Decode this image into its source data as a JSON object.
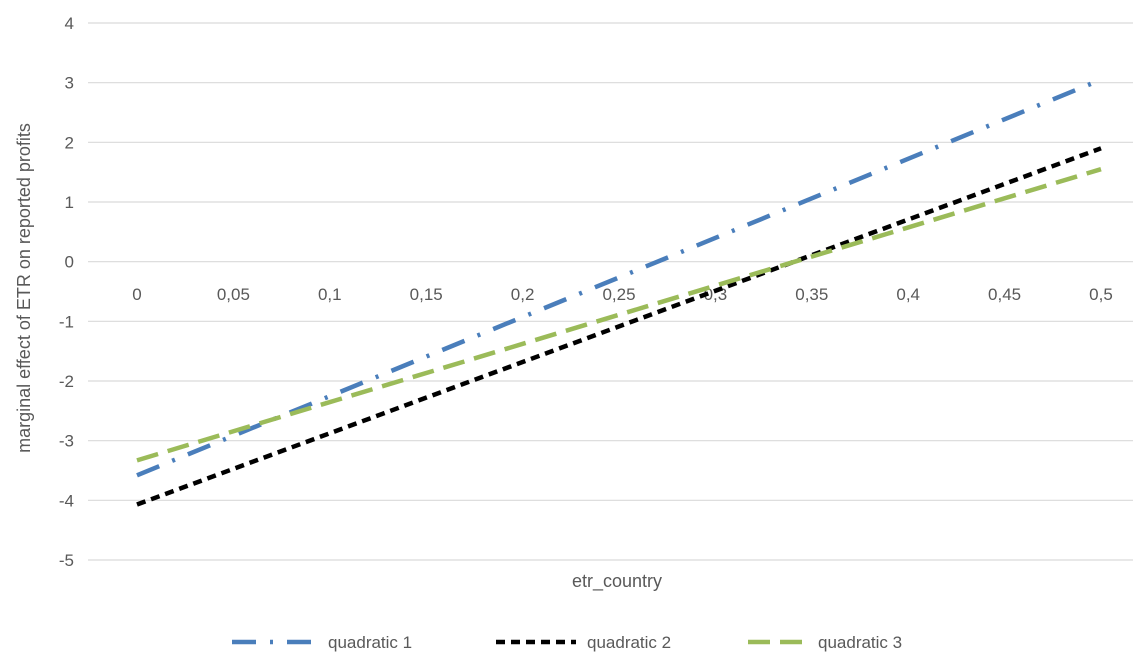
{
  "chart_data": {
    "type": "line",
    "title": "",
    "xlabel": "etr_country",
    "ylabel": "marginal effect of ETR on reported profits",
    "x_tick_labels": [
      "0",
      "0,05",
      "0,1",
      "0,15",
      "0,2",
      "0,25",
      "0,3",
      "0,35",
      "0,4",
      "0,45",
      "0,5"
    ],
    "y_tick_labels": [
      "4",
      "3",
      "2",
      "1",
      "0",
      "-1",
      "-2",
      "-3",
      "-4",
      "-5"
    ],
    "x": [
      0,
      0.5
    ],
    "xlim": [
      0,
      0.5
    ],
    "ylim": [
      -5,
      4
    ],
    "y_ticks": [
      4,
      3,
      2,
      1,
      0,
      -1,
      -2,
      -3,
      -4,
      -5
    ],
    "grid": true,
    "legend_position": "bottom",
    "series": [
      {
        "name": "quadratic  1",
        "x": [
          0,
          0.5
        ],
        "values": [
          -3.58,
          3.05
        ],
        "color": "#4a7ebb",
        "dash": "long-dash-dot"
      },
      {
        "name": "quadratic  2",
        "x": [
          0,
          0.5
        ],
        "values": [
          -4.07,
          1.9
        ],
        "color": "#000000",
        "dash": "short-dash"
      },
      {
        "name": "quadratic  3",
        "x": [
          0,
          0.5
        ],
        "values": [
          -3.33,
          1.55
        ],
        "color": "#9bbb59",
        "dash": "long-dash"
      }
    ]
  }
}
